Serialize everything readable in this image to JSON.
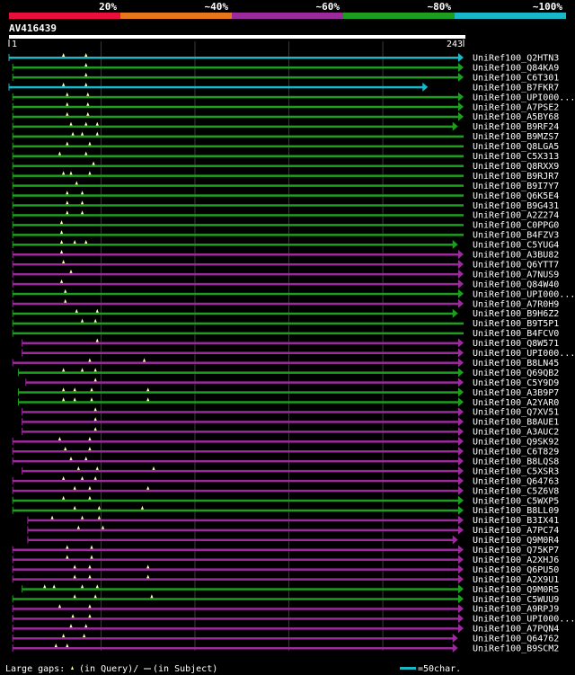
{
  "chart_data": {
    "type": "alignment-overview",
    "query_name": "AV416439",
    "query_start": "1",
    "query_end": "243",
    "query_length": 243,
    "legend": {
      "items": [
        {
          "label": "20%",
          "color": "#e8103a"
        },
        {
          "label": "~40%",
          "color": "#e8761a"
        },
        {
          "label": "~60%",
          "color": "#9b2a9b"
        },
        {
          "label": "~80%",
          "color": "#1e9e1e"
        },
        {
          "label": "~100%",
          "color": "#19b8c8"
        }
      ]
    },
    "footer": {
      "gaps_text": "Large gaps:",
      "query_part": "(in Query)/",
      "subject_part": "(in Subject)",
      "scale_text": "=50char.",
      "scale_color": "#19b8c8"
    },
    "hits": [
      {
        "name": "UniRef100_Q2HTN3",
        "color": "#19b8c8",
        "start": 1,
        "end": 243,
        "arrow": "head",
        "gaps": [
          30,
          42
        ]
      },
      {
        "name": "UniRef100_Q84KA9",
        "color": "#1e9e1e",
        "start": 3,
        "end": 243,
        "arrow": "head",
        "gaps": [
          42
        ]
      },
      {
        "name": "UniRef100_C6T301",
        "color": "#1e9e1e",
        "start": 3,
        "end": 243,
        "arrow": "head",
        "gaps": [
          42
        ]
      },
      {
        "name": "UniRef100_B7FKR7",
        "color": "#19b8c8",
        "start": 1,
        "end": 224,
        "arrow": "head",
        "gaps": [
          30,
          42
        ]
      },
      {
        "name": "UniRef100_UPI000...",
        "color": "#1e9e1e",
        "start": 3,
        "end": 243,
        "arrow": "head",
        "gaps": [
          32,
          43
        ]
      },
      {
        "name": "UniRef100_A7PSE2",
        "color": "#1e9e1e",
        "start": 3,
        "end": 243,
        "arrow": "head",
        "gaps": [
          32,
          43
        ]
      },
      {
        "name": "UniRef100_A5BY68",
        "color": "#1e9e1e",
        "start": 3,
        "end": 243,
        "arrow": "head",
        "gaps": [
          32,
          43
        ]
      },
      {
        "name": "UniRef100_B9RF24",
        "color": "#1e9e1e",
        "start": 3,
        "end": 240,
        "arrow": "head",
        "gaps": [
          34,
          42,
          48
        ]
      },
      {
        "name": "UniRef100_B9MZS7",
        "color": "#1e9e1e",
        "start": 3,
        "end": 243,
        "arrow": "none",
        "gaps": [
          35,
          40,
          48
        ]
      },
      {
        "name": "UniRef100_Q8LGA5",
        "color": "#1e9e1e",
        "start": 3,
        "end": 243,
        "arrow": "none",
        "gaps": [
          32,
          44
        ]
      },
      {
        "name": "UniRef100_C5X313",
        "color": "#1e9e1e",
        "start": 3,
        "end": 243,
        "arrow": "none",
        "gaps": [
          28,
          42
        ]
      },
      {
        "name": "UniRef100_Q8RXX9",
        "color": "#1e9e1e",
        "start": 3,
        "end": 243,
        "arrow": "none",
        "gaps": [
          46
        ]
      },
      {
        "name": "UniRef100_B9RJR7",
        "color": "#1e9e1e",
        "start": 3,
        "end": 243,
        "arrow": "none",
        "gaps": [
          30,
          34,
          44
        ]
      },
      {
        "name": "UniRef100_B9I7Y7",
        "color": "#1e9e1e",
        "start": 3,
        "end": 243,
        "arrow": "none",
        "gaps": [
          37
        ]
      },
      {
        "name": "UniRef100_Q6K5E4",
        "color": "#1e9e1e",
        "start": 3,
        "end": 243,
        "arrow": "none",
        "gaps": [
          32,
          40
        ]
      },
      {
        "name": "UniRef100_B9G431",
        "color": "#1e9e1e",
        "start": 3,
        "end": 243,
        "arrow": "none",
        "gaps": [
          32,
          40
        ]
      },
      {
        "name": "UniRef100_A2Z274",
        "color": "#1e9e1e",
        "start": 3,
        "end": 243,
        "arrow": "none",
        "gaps": [
          32,
          40
        ]
      },
      {
        "name": "UniRef100_C0PPG0",
        "color": "#1e9e1e",
        "start": 3,
        "end": 243,
        "arrow": "none",
        "gaps": [
          29
        ]
      },
      {
        "name": "UniRef100_B4FZV3",
        "color": "#1e9e1e",
        "start": 3,
        "end": 243,
        "arrow": "none",
        "gaps": [
          29
        ]
      },
      {
        "name": "UniRef100_C5YUG4",
        "color": "#1e9e1e",
        "start": 3,
        "end": 240,
        "arrow": "head",
        "gaps": [
          29,
          36,
          42
        ]
      },
      {
        "name": "UniRef100_A3BU82",
        "color": "#9b2a9b",
        "start": 3,
        "end": 243,
        "arrow": "head",
        "gaps": [
          29
        ]
      },
      {
        "name": "UniRef100_Q6YTT7",
        "color": "#9b2a9b",
        "start": 3,
        "end": 243,
        "arrow": "head",
        "gaps": [
          30
        ]
      },
      {
        "name": "UniRef100_A7NUS9",
        "color": "#9b2a9b",
        "start": 3,
        "end": 243,
        "arrow": "head",
        "gaps": [
          34
        ]
      },
      {
        "name": "UniRef100_Q84W40",
        "color": "#9b2a9b",
        "start": 3,
        "end": 243,
        "arrow": "head",
        "gaps": [
          29
        ]
      },
      {
        "name": "UniRef100_UPI000...",
        "color": "#1e9e1e",
        "start": 3,
        "end": 243,
        "arrow": "head",
        "gaps": [
          31
        ]
      },
      {
        "name": "UniRef100_A7R0H9",
        "color": "#9b2a9b",
        "start": 3,
        "end": 243,
        "arrow": "head",
        "gaps": [
          31
        ]
      },
      {
        "name": "UniRef100_B9H6Z2",
        "color": "#1e9e1e",
        "start": 3,
        "end": 240,
        "arrow": "head",
        "gaps": [
          37,
          48
        ]
      },
      {
        "name": "UniRef100_B9T5P1",
        "color": "#1e9e1e",
        "start": 3,
        "end": 243,
        "arrow": "none",
        "gaps": [
          40,
          47
        ]
      },
      {
        "name": "UniRef100_B4FCV0",
        "color": "#1e9e1e",
        "start": 3,
        "end": 243,
        "arrow": "none",
        "gaps": []
      },
      {
        "name": "UniRef100_Q8W571",
        "color": "#9b2a9b",
        "start": 8,
        "end": 243,
        "arrow": "head",
        "gaps": [
          48
        ]
      },
      {
        "name": "UniRef100_UPI000...",
        "color": "#9b2a9b",
        "start": 8,
        "end": 243,
        "arrow": "head",
        "gaps": []
      },
      {
        "name": "UniRef100_B8LN45",
        "color": "#9b2a9b",
        "start": 3,
        "end": 243,
        "arrow": "head",
        "gaps": [
          44,
          73
        ]
      },
      {
        "name": "UniRef100_Q69QB2",
        "color": "#1e9e1e",
        "start": 6,
        "end": 243,
        "arrow": "head",
        "gaps": [
          30,
          40,
          47
        ]
      },
      {
        "name": "UniRef100_C5Y9D9",
        "color": "#9b2a9b",
        "start": 10,
        "end": 243,
        "arrow": "head",
        "gaps": [
          47
        ]
      },
      {
        "name": "UniRef100_A3B9P7",
        "color": "#1e9e1e",
        "start": 6,
        "end": 243,
        "arrow": "head",
        "gaps": [
          30,
          36,
          45,
          75
        ]
      },
      {
        "name": "UniRef100_A2YAR0",
        "color": "#1e9e1e",
        "start": 6,
        "end": 243,
        "arrow": "head",
        "gaps": [
          30,
          36,
          45,
          75
        ]
      },
      {
        "name": "UniRef100_Q7XV51",
        "color": "#9b2a9b",
        "start": 8,
        "end": 243,
        "arrow": "head",
        "gaps": [
          47
        ]
      },
      {
        "name": "UniRef100_B8AUE1",
        "color": "#9b2a9b",
        "start": 8,
        "end": 243,
        "arrow": "head",
        "gaps": [
          47
        ]
      },
      {
        "name": "UniRef100_A3AUC2",
        "color": "#9b2a9b",
        "start": 8,
        "end": 243,
        "arrow": "head",
        "gaps": [
          47
        ]
      },
      {
        "name": "UniRef100_Q9SK92",
        "color": "#9b2a9b",
        "start": 3,
        "end": 243,
        "arrow": "head",
        "gaps": [
          28,
          44
        ]
      },
      {
        "name": "UniRef100_C6T829",
        "color": "#9b2a9b",
        "start": 3,
        "end": 243,
        "arrow": "head",
        "gaps": [
          31,
          44
        ]
      },
      {
        "name": "UniRef100_B8LQS8",
        "color": "#9b2a9b",
        "start": 3,
        "end": 243,
        "arrow": "head",
        "gaps": [
          34,
          42
        ]
      },
      {
        "name": "UniRef100_C5XSR3",
        "color": "#9b2a9b",
        "start": 8,
        "end": 243,
        "arrow": "head",
        "gaps": [
          38,
          48,
          78
        ]
      },
      {
        "name": "UniRef100_Q64763",
        "color": "#9b2a9b",
        "start": 3,
        "end": 243,
        "arrow": "head",
        "gaps": [
          30,
          40,
          47
        ]
      },
      {
        "name": "UniRef100_C5Z6V8",
        "color": "#9b2a9b",
        "start": 3,
        "end": 243,
        "arrow": "head",
        "gaps": [
          36,
          44,
          75
        ]
      },
      {
        "name": "UniRef100_C5WXP5",
        "color": "#1e9e1e",
        "start": 3,
        "end": 243,
        "arrow": "head",
        "gaps": [
          30,
          44
        ]
      },
      {
        "name": "UniRef100_B8LL09",
        "color": "#1e9e1e",
        "start": 3,
        "end": 243,
        "arrow": "head",
        "gaps": [
          36,
          49,
          72
        ]
      },
      {
        "name": "UniRef100_B3IX41",
        "color": "#9b2a9b",
        "start": 11,
        "end": 243,
        "arrow": "head",
        "gaps": [
          24,
          40,
          49
        ]
      },
      {
        "name": "UniRef100_A7PC74",
        "color": "#9b2a9b",
        "start": 11,
        "end": 243,
        "arrow": "head",
        "gaps": [
          38,
          51
        ]
      },
      {
        "name": "UniRef100_Q9M0R4",
        "color": "#9b2a9b",
        "start": 11,
        "end": 240,
        "arrow": "head",
        "gaps": []
      },
      {
        "name": "UniRef100_Q75KP7",
        "color": "#9b2a9b",
        "start": 3,
        "end": 243,
        "arrow": "head",
        "gaps": [
          32,
          45
        ]
      },
      {
        "name": "UniRef100_A2XHJ6",
        "color": "#9b2a9b",
        "start": 3,
        "end": 243,
        "arrow": "head",
        "gaps": [
          32,
          45
        ]
      },
      {
        "name": "UniRef100_Q6PU50",
        "color": "#9b2a9b",
        "start": 3,
        "end": 243,
        "arrow": "head",
        "gaps": [
          36,
          44,
          75
        ]
      },
      {
        "name": "UniRef100_A2X9U1",
        "color": "#9b2a9b",
        "start": 3,
        "end": 243,
        "arrow": "head",
        "gaps": [
          36,
          44,
          75
        ]
      },
      {
        "name": "UniRef100_Q9M0R5",
        "color": "#1e9e1e",
        "start": 8,
        "end": 243,
        "arrow": "head",
        "gaps": [
          20,
          25,
          40,
          48
        ]
      },
      {
        "name": "UniRef100_C5WUU9",
        "color": "#1e9e1e",
        "start": 3,
        "end": 243,
        "arrow": "head",
        "gaps": [
          36,
          47,
          77
        ]
      },
      {
        "name": "UniRef100_A9RPJ9",
        "color": "#9b2a9b",
        "start": 3,
        "end": 243,
        "arrow": "head",
        "gaps": [
          28,
          44
        ]
      },
      {
        "name": "UniRef100_UPI000...",
        "color": "#9b2a9b",
        "start": 3,
        "end": 243,
        "arrow": "head",
        "gaps": [
          35,
          44
        ]
      },
      {
        "name": "UniRef100_A7PQN4",
        "color": "#9b2a9b",
        "start": 3,
        "end": 243,
        "arrow": "head",
        "gaps": [
          34,
          42
        ]
      },
      {
        "name": "UniRef100_Q64762",
        "color": "#9b2a9b",
        "start": 3,
        "end": 240,
        "arrow": "head",
        "gaps": [
          30,
          41
        ]
      },
      {
        "name": "UniRef100_B9SCM2",
        "color": "#9b2a9b",
        "start": 3,
        "end": 240,
        "arrow": "head",
        "gaps": [
          26,
          32
        ]
      }
    ]
  }
}
